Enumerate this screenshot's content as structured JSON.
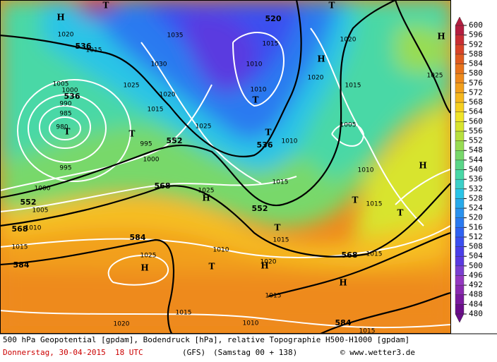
{
  "map": {
    "height_labels": [
      "536",
      "520",
      "552",
      "552",
      "568",
      "568",
      "536",
      "552",
      "568",
      "584",
      "584",
      "584",
      "536"
    ],
    "pressure_labels": [
      "1015",
      "1030",
      "1035",
      "1025",
      "1020",
      "1015",
      "1005",
      "1000",
      "990",
      "985",
      "980",
      "995",
      "1000",
      "995",
      "1000",
      "1005",
      "1010",
      "1015",
      "1010",
      "1015",
      "1010",
      "1025",
      "1010",
      "1015",
      "1025",
      "1020",
      "1025",
      "1015",
      "1020",
      "1005",
      "1010",
      "1015",
      "1015",
      "1015",
      "1010",
      "1025",
      "1020",
      "1015",
      "1015",
      "1010",
      "1020",
      "1015",
      "1020"
    ],
    "centers": [
      "H",
      "T",
      "H",
      "H",
      "T",
      "T",
      "T",
      "T",
      "H",
      "H",
      "T",
      "T",
      "T",
      "H",
      "T",
      "H",
      "H",
      "T"
    ]
  },
  "colorbar": {
    "ticks": [
      600,
      596,
      592,
      588,
      584,
      580,
      576,
      572,
      568,
      564,
      560,
      556,
      552,
      548,
      544,
      540,
      536,
      532,
      528,
      524,
      520,
      516,
      512,
      508,
      504,
      500,
      496,
      492,
      488,
      484,
      480
    ],
    "colors": [
      "#6a0d8a",
      "#7a1a9e",
      "#8a2ab0",
      "#9438c0",
      "#7a3fd0",
      "#5a3ae0",
      "#4a3fe8",
      "#3b4ff0",
      "#2f62f2",
      "#2a7af0",
      "#2a92ee",
      "#28aaea",
      "#2ac4e6",
      "#3cd0c8",
      "#48d8a6",
      "#5ad688",
      "#78d86a",
      "#98dc52",
      "#b8e03e",
      "#d8e42e",
      "#f0e428",
      "#f6d020",
      "#f6b81e",
      "#f2a01c",
      "#ee8a1c",
      "#e8741c",
      "#e05c20",
      "#d84428",
      "#c82e34",
      "#b41e40"
    ]
  },
  "footer": {
    "description": "500 hPa Geopotential [gpdam], Bodendruck [hPa], relative Topographie H500-H1000 [gpdam]",
    "date": "Donnerstag, 30-04-2015  18 UTC",
    "model": "(GFS)",
    "run": "(Samstag 00 + 138)",
    "credit": "© www.wetter3.de"
  }
}
